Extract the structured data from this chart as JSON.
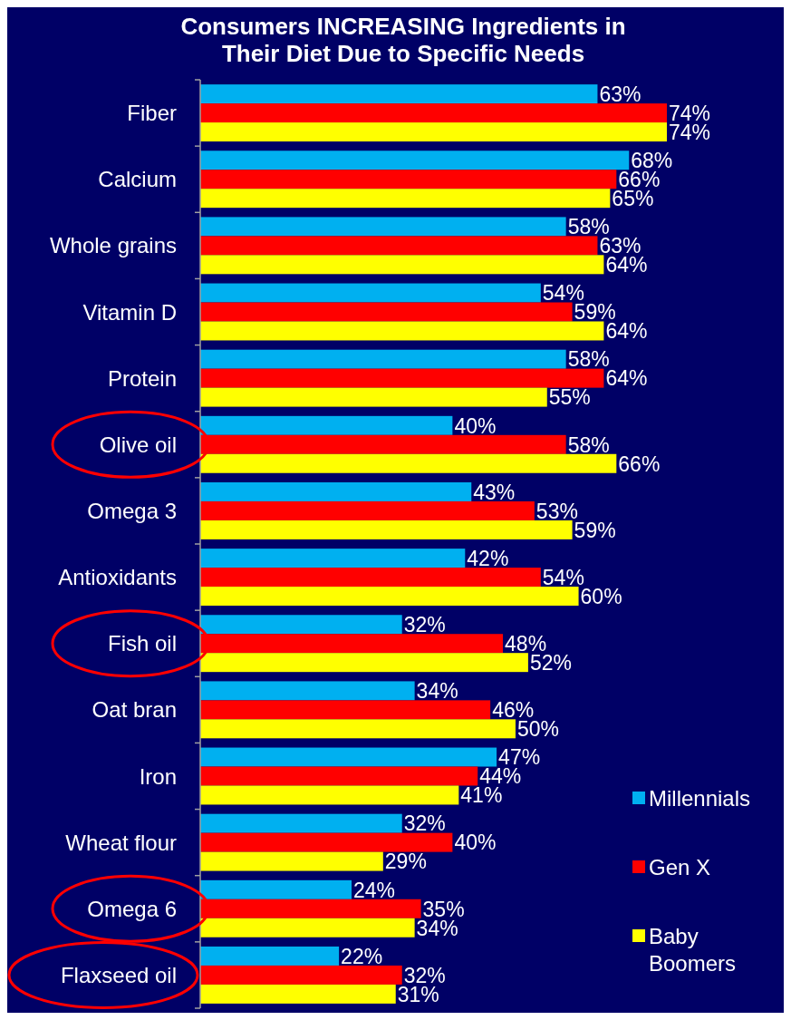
{
  "chart_data": {
    "type": "bar",
    "orientation": "horizontal",
    "title": "Consumers INCREASING Ingredients in\nTheir Diet Due to Specific Needs",
    "categories": [
      "Fiber",
      "Calcium",
      "Whole grains",
      "Vitamin D",
      "Protein",
      "Olive oil",
      "Omega 3",
      "Antioxidants",
      "Fish oil",
      "Oat bran",
      "Iron",
      "Wheat flour",
      "Omega 6",
      "Flaxseed oil"
    ],
    "legend": "right",
    "series": [
      {
        "name": "Millennials",
        "color": "#00b0f0",
        "values": [
          63,
          68,
          58,
          54,
          58,
          40,
          43,
          42,
          32,
          34,
          47,
          32,
          24,
          22
        ],
        "value_labels": [
          "63%",
          "68%",
          "58%",
          "54%",
          "58%",
          "40%",
          "43%",
          "42%",
          "32%",
          "34%",
          "47%",
          "32%",
          "24%",
          "22%"
        ]
      },
      {
        "name": "Gen X",
        "color": "#ff0000",
        "values": [
          74,
          66,
          63,
          59,
          64,
          58,
          53,
          54,
          48,
          46,
          44,
          40,
          35,
          32
        ],
        "value_labels": [
          "74%",
          "66%",
          "63%",
          "59%",
          "64%",
          "58%",
          "53%",
          "54%",
          "48%",
          "46%",
          "44%",
          "40%",
          "35%",
          "32%"
        ]
      },
      {
        "name": "Baby Boomers",
        "color": "#ffff00",
        "values": [
          74,
          65,
          64,
          64,
          55,
          66,
          59,
          60,
          52,
          50,
          41,
          29,
          34,
          31
        ],
        "value_labels": [
          "74%",
          "65%",
          "64%",
          "64%",
          "55%",
          "66%",
          "59%",
          "60%",
          "52%",
          "50%",
          "41%",
          "29%",
          "34%",
          "31%"
        ]
      }
    ]
  }
}
